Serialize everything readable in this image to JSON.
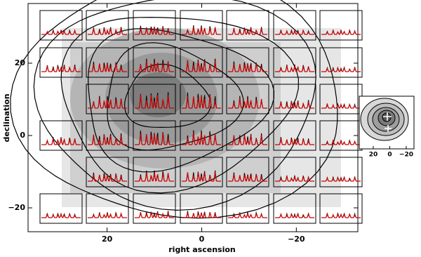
{
  "chart_data": [
    {
      "type": "contour",
      "x_label": "right ascension",
      "y_label": "declination",
      "xlim": [
        36.7,
        -33
      ],
      "ylim": [
        -26.6,
        36.5
      ],
      "xticks": [
        20,
        0,
        {
          "value": -20,
          "label": "−20"
        }
      ],
      "yticks": [
        20,
        0,
        {
          "value": -20,
          "label": "−20"
        }
      ]
    },
    {
      "type": "contour",
      "xlim": [
        37,
        -29.4
      ],
      "xticks": [
        20,
        0,
        {
          "value": -20,
          "label": "−20"
        }
      ]
    }
  ]
}
